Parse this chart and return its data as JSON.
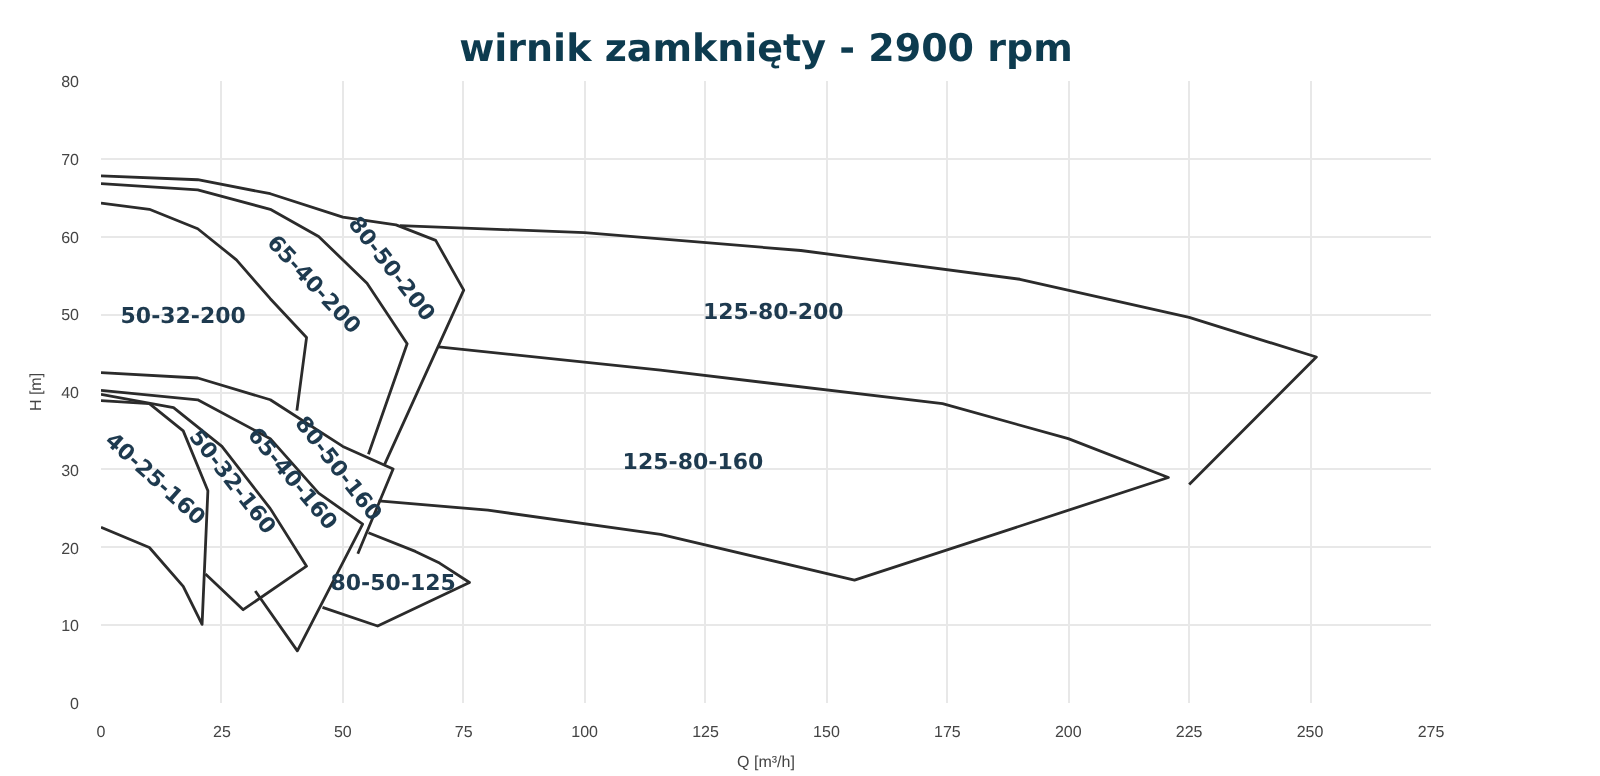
{
  "chart_data": {
    "type": "line",
    "title": "wirnik zamknięty - 2900 rpm",
    "xlabel": "Q [m³/h]",
    "ylabel": "H [m]",
    "xlim": [
      0,
      275
    ],
    "xticks": [
      0,
      25,
      50,
      75,
      100,
      125,
      150,
      175,
      200,
      225,
      250,
      275
    ],
    "ylim": [
      0,
      80
    ],
    "yticks": [
      0,
      10,
      20,
      30,
      40,
      50,
      60,
      70,
      80
    ],
    "grid": true,
    "marker": "none",
    "line_style": "solid",
    "series": [
      {
        "name": "50-32-200",
        "color": "#2b2b2b",
        "x": [
          0,
          10,
          20,
          28,
          35,
          42.5,
          40.5
        ],
        "values": [
          64.3,
          63.5,
          61,
          57,
          52,
          47,
          37.6
        ]
      },
      {
        "name": "65-40-200",
        "color": "#2b2b2b",
        "x": [
          0,
          20,
          35,
          45,
          55,
          63.3,
          55.3
        ],
        "values": [
          66.8,
          66,
          63.5,
          60,
          54,
          46.2,
          32
        ]
      },
      {
        "name": "80-50-200",
        "color": "#2b2b2b",
        "x": [
          0,
          20,
          35,
          50,
          61,
          69.2,
          75,
          58.5
        ],
        "values": [
          67.8,
          67.3,
          65.5,
          62.5,
          61.5,
          59.5,
          53.1,
          30.5
        ]
      },
      {
        "name": "125-80-200",
        "color": "#2b2b2b",
        "x": [
          61.8,
          100,
          144.7,
          190,
          225,
          251.3,
          225
        ],
        "values": [
          61.4,
          60.5,
          58.2,
          54.5,
          49.6,
          44.5,
          28.1
        ]
      },
      {
        "name": "125-80-160",
        "color": "#2b2b2b",
        "x": [
          69.8,
          115.7,
          174,
          200,
          220.7,
          155.8,
          115.7,
          80,
          57.4
        ],
        "values": [
          45.8,
          42.8,
          38.5,
          34,
          29,
          15.8,
          21.7,
          24.8,
          26
        ]
      },
      {
        "name": "80-50-160",
        "color": "#2b2b2b",
        "x": [
          0,
          20,
          35,
          50,
          60.4,
          53.1
        ],
        "values": [
          42.5,
          41.8,
          39,
          33,
          30.1,
          19.2
        ]
      },
      {
        "name": "65-40-160",
        "color": "#2b2b2b",
        "x": [
          0,
          20,
          35,
          45,
          54.1,
          40.6,
          31.9
        ],
        "values": [
          40.2,
          39,
          34,
          27,
          23,
          6.7,
          14.4
        ]
      },
      {
        "name": "50-32-160",
        "color": "#2b2b2b",
        "x": [
          0,
          15,
          25,
          35,
          42.5,
          29.4,
          21.6
        ],
        "values": [
          39.7,
          38,
          33,
          25,
          17.6,
          12,
          16.6
        ]
      },
      {
        "name": "40-25-160",
        "color": "#2b2b2b",
        "x": [
          0,
          10,
          17,
          22.1,
          20.9,
          17,
          10,
          0
        ],
        "values": [
          38.9,
          38.5,
          35,
          27.3,
          10.1,
          15,
          20,
          22.6
        ]
      },
      {
        "name": "80-50-125",
        "color": "#2b2b2b",
        "x": [
          55.3,
          65,
          70,
          76.2,
          57.2,
          45.8
        ],
        "values": [
          21.9,
          19.5,
          18,
          15.5,
          9.9,
          12.3
        ]
      }
    ]
  }
}
